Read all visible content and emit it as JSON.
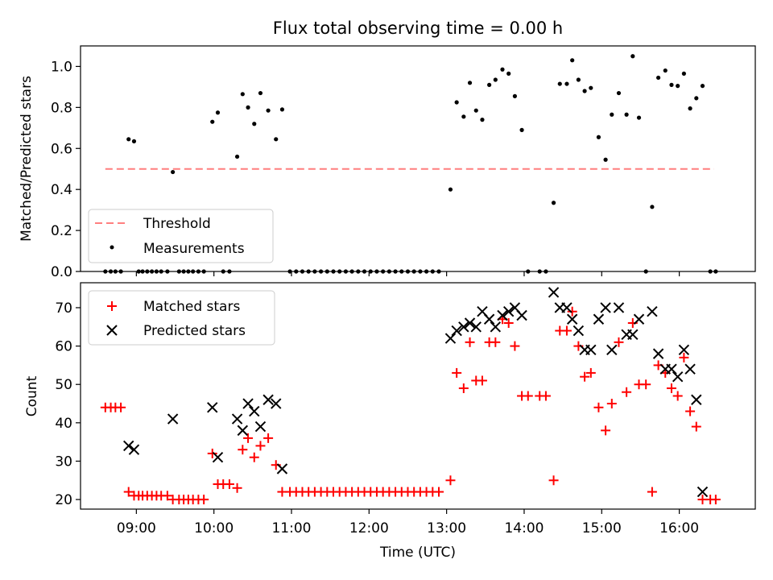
{
  "chart_data": [
    {
      "type": "scatter",
      "title": "Flux total observing time = 0.00 h",
      "xlabel": "",
      "ylabel": "Matched/Predicted stars",
      "xlim": [
        8.28,
        16.98
      ],
      "ylim": [
        0.0,
        1.1
      ],
      "yticks": [
        0.0,
        0.2,
        0.4,
        0.6,
        0.8,
        1.0
      ],
      "yticklabels": [
        "0.0",
        "0.2",
        "0.4",
        "0.6",
        "0.8",
        "1.0"
      ],
      "legend_position": "lower-left",
      "threshold": {
        "name": "Threshold",
        "color": "#ff7f7f",
        "x": [
          8.6,
          16.45
        ],
        "y": 0.5
      },
      "series": [
        {
          "name": "Measurements",
          "color": "#000000",
          "marker": "dot",
          "points": [
            [
              8.6,
              0
            ],
            [
              8.67,
              0
            ],
            [
              8.73,
              0
            ],
            [
              8.8,
              0
            ],
            [
              8.9,
              0.645
            ],
            [
              8.97,
              0.635
            ],
            [
              9.03,
              0
            ],
            [
              9.08,
              0
            ],
            [
              9.14,
              0
            ],
            [
              9.2,
              0
            ],
            [
              9.26,
              0
            ],
            [
              9.32,
              0
            ],
            [
              9.4,
              0
            ],
            [
              9.47,
              0.485
            ],
            [
              9.55,
              0
            ],
            [
              9.61,
              0
            ],
            [
              9.67,
              0
            ],
            [
              9.73,
              0
            ],
            [
              9.8,
              0
            ],
            [
              9.87,
              0
            ],
            [
              9.98,
              0.73
            ],
            [
              10.05,
              0.775
            ],
            [
              10.12,
              0
            ],
            [
              10.2,
              0
            ],
            [
              10.3,
              0.56
            ],
            [
              10.37,
              0.865
            ],
            [
              10.44,
              0.8
            ],
            [
              10.52,
              0.72
            ],
            [
              10.6,
              0.87
            ],
            [
              10.7,
              0.785
            ],
            [
              10.8,
              0.645
            ],
            [
              10.88,
              0.79
            ],
            [
              10.98,
              0
            ],
            [
              11.06,
              0
            ],
            [
              11.14,
              0
            ],
            [
              11.22,
              0
            ],
            [
              11.3,
              0
            ],
            [
              11.38,
              0
            ],
            [
              11.46,
              0
            ],
            [
              11.54,
              0
            ],
            [
              11.62,
              0
            ],
            [
              11.7,
              0
            ],
            [
              11.78,
              0
            ],
            [
              11.86,
              0
            ],
            [
              11.94,
              0
            ],
            [
              12.02,
              0
            ],
            [
              12.1,
              0
            ],
            [
              12.18,
              0
            ],
            [
              12.26,
              0
            ],
            [
              12.34,
              0
            ],
            [
              12.42,
              0
            ],
            [
              12.5,
              0
            ],
            [
              12.58,
              0
            ],
            [
              12.66,
              0
            ],
            [
              12.74,
              0
            ],
            [
              12.82,
              0
            ],
            [
              12.9,
              0
            ],
            [
              13.05,
              0.4
            ],
            [
              13.13,
              0.825
            ],
            [
              13.22,
              0.755
            ],
            [
              13.3,
              0.92
            ],
            [
              13.38,
              0.785
            ],
            [
              13.46,
              0.74
            ],
            [
              13.55,
              0.91
            ],
            [
              13.63,
              0.935
            ],
            [
              13.72,
              0.985
            ],
            [
              13.8,
              0.965
            ],
            [
              13.88,
              0.855
            ],
            [
              13.97,
              0.69
            ],
            [
              14.05,
              0
            ],
            [
              14.2,
              0
            ],
            [
              14.28,
              0
            ],
            [
              14.38,
              0.335
            ],
            [
              14.46,
              0.915
            ],
            [
              14.55,
              0.915
            ],
            [
              14.62,
              1.03
            ],
            [
              14.7,
              0.935
            ],
            [
              14.78,
              0.88
            ],
            [
              14.86,
              0.895
            ],
            [
              14.96,
              0.655
            ],
            [
              15.05,
              0.545
            ],
            [
              15.13,
              0.765
            ],
            [
              15.22,
              0.87
            ],
            [
              15.32,
              0.765
            ],
            [
              15.4,
              1.05
            ],
            [
              15.48,
              0.75
            ],
            [
              15.57,
              0
            ],
            [
              15.65,
              0.315
            ],
            [
              15.73,
              0.945
            ],
            [
              15.82,
              0.98
            ],
            [
              15.9,
              0.91
            ],
            [
              15.98,
              0.905
            ],
            [
              16.06,
              0.965
            ],
            [
              16.14,
              0.795
            ],
            [
              16.22,
              0.845
            ],
            [
              16.3,
              0.905
            ],
            [
              16.4,
              0
            ],
            [
              16.47,
              0
            ]
          ]
        }
      ]
    },
    {
      "type": "scatter",
      "title": "",
      "xlabel": "Time (UTC)",
      "ylabel": "Count",
      "xlim": [
        8.28,
        16.98
      ],
      "ylim": [
        17.5,
        76.5
      ],
      "yticks": [
        20,
        30,
        40,
        50,
        60,
        70
      ],
      "yticklabels": [
        "20",
        "30",
        "40",
        "50",
        "60",
        "70"
      ],
      "xticks": [
        9,
        10,
        11,
        12,
        13,
        14,
        15,
        16
      ],
      "xticklabels": [
        "09:00",
        "10:00",
        "11:00",
        "12:00",
        "13:00",
        "14:00",
        "15:00",
        "16:00"
      ],
      "legend_position": "upper-left",
      "series": [
        {
          "name": "Matched stars",
          "color": "#ff0000",
          "marker": "plus",
          "points": [
            [
              8.6,
              44
            ],
            [
              8.67,
              44
            ],
            [
              8.73,
              44
            ],
            [
              8.8,
              44
            ],
            [
              8.9,
              22
            ],
            [
              8.97,
              21
            ],
            [
              9.03,
              21
            ],
            [
              9.08,
              21
            ],
            [
              9.14,
              21
            ],
            [
              9.2,
              21
            ],
            [
              9.26,
              21
            ],
            [
              9.32,
              21
            ],
            [
              9.4,
              21
            ],
            [
              9.47,
              20
            ],
            [
              9.55,
              20
            ],
            [
              9.61,
              20
            ],
            [
              9.67,
              20
            ],
            [
              9.73,
              20
            ],
            [
              9.8,
              20
            ],
            [
              9.87,
              20
            ],
            [
              9.98,
              32
            ],
            [
              10.05,
              24
            ],
            [
              10.12,
              24
            ],
            [
              10.2,
              24
            ],
            [
              10.3,
              23
            ],
            [
              10.37,
              33
            ],
            [
              10.44,
              36
            ],
            [
              10.52,
              31
            ],
            [
              10.6,
              34
            ],
            [
              10.7,
              36
            ],
            [
              10.8,
              29
            ],
            [
              10.88,
              22
            ],
            [
              10.98,
              22
            ],
            [
              11.06,
              22
            ],
            [
              11.14,
              22
            ],
            [
              11.22,
              22
            ],
            [
              11.3,
              22
            ],
            [
              11.38,
              22
            ],
            [
              11.46,
              22
            ],
            [
              11.54,
              22
            ],
            [
              11.62,
              22
            ],
            [
              11.7,
              22
            ],
            [
              11.78,
              22
            ],
            [
              11.86,
              22
            ],
            [
              11.94,
              22
            ],
            [
              12.02,
              22
            ],
            [
              12.1,
              22
            ],
            [
              12.18,
              22
            ],
            [
              12.26,
              22
            ],
            [
              12.34,
              22
            ],
            [
              12.42,
              22
            ],
            [
              12.5,
              22
            ],
            [
              12.58,
              22
            ],
            [
              12.66,
              22
            ],
            [
              12.74,
              22
            ],
            [
              12.82,
              22
            ],
            [
              12.9,
              22
            ],
            [
              13.05,
              25
            ],
            [
              13.13,
              53
            ],
            [
              13.22,
              49
            ],
            [
              13.3,
              61
            ],
            [
              13.38,
              51
            ],
            [
              13.46,
              51
            ],
            [
              13.55,
              61
            ],
            [
              13.63,
              61
            ],
            [
              13.72,
              67
            ],
            [
              13.8,
              66
            ],
            [
              13.88,
              60
            ],
            [
              13.97,
              47
            ],
            [
              14.05,
              47
            ],
            [
              14.2,
              47
            ],
            [
              14.28,
              47
            ],
            [
              14.38,
              25
            ],
            [
              14.46,
              64
            ],
            [
              14.55,
              64
            ],
            [
              14.62,
              69
            ],
            [
              14.7,
              60
            ],
            [
              14.78,
              52
            ],
            [
              14.86,
              53
            ],
            [
              14.96,
              44
            ],
            [
              15.05,
              38
            ],
            [
              15.13,
              45
            ],
            [
              15.22,
              61
            ],
            [
              15.32,
              48
            ],
            [
              15.4,
              66
            ],
            [
              15.48,
              50
            ],
            [
              15.57,
              50
            ],
            [
              15.65,
              22
            ],
            [
              15.73,
              55
            ],
            [
              15.82,
              53
            ],
            [
              15.9,
              49
            ],
            [
              15.98,
              47
            ],
            [
              16.06,
              57
            ],
            [
              16.14,
              43
            ],
            [
              16.22,
              39
            ],
            [
              16.3,
              20
            ],
            [
              16.4,
              20
            ],
            [
              16.47,
              20
            ]
          ]
        },
        {
          "name": "Predicted stars",
          "color": "#000000",
          "marker": "x",
          "points": [
            [
              8.9,
              34
            ],
            [
              8.97,
              33
            ],
            [
              9.47,
              41
            ],
            [
              9.98,
              44
            ],
            [
              10.05,
              31
            ],
            [
              10.3,
              41
            ],
            [
              10.37,
              38
            ],
            [
              10.44,
              45
            ],
            [
              10.52,
              43
            ],
            [
              10.6,
              39
            ],
            [
              10.7,
              46
            ],
            [
              10.8,
              45
            ],
            [
              10.88,
              28
            ],
            [
              13.05,
              62
            ],
            [
              13.13,
              64
            ],
            [
              13.22,
              65
            ],
            [
              13.3,
              66
            ],
            [
              13.38,
              65
            ],
            [
              13.46,
              69
            ],
            [
              13.55,
              67
            ],
            [
              13.63,
              65
            ],
            [
              13.72,
              68
            ],
            [
              13.8,
              69
            ],
            [
              13.88,
              70
            ],
            [
              13.97,
              68
            ],
            [
              14.38,
              74
            ],
            [
              14.46,
              70
            ],
            [
              14.55,
              70
            ],
            [
              14.62,
              67
            ],
            [
              14.7,
              64
            ],
            [
              14.78,
              59
            ],
            [
              14.86,
              59
            ],
            [
              14.96,
              67
            ],
            [
              15.05,
              70
            ],
            [
              15.13,
              59
            ],
            [
              15.22,
              70
            ],
            [
              15.32,
              63
            ],
            [
              15.4,
              63
            ],
            [
              15.48,
              67
            ],
            [
              15.65,
              69
            ],
            [
              15.73,
              58
            ],
            [
              15.82,
              54
            ],
            [
              15.9,
              54
            ],
            [
              15.98,
              52
            ],
            [
              16.06,
              59
            ],
            [
              16.14,
              54
            ],
            [
              16.22,
              46
            ],
            [
              16.3,
              22
            ]
          ]
        }
      ]
    }
  ]
}
